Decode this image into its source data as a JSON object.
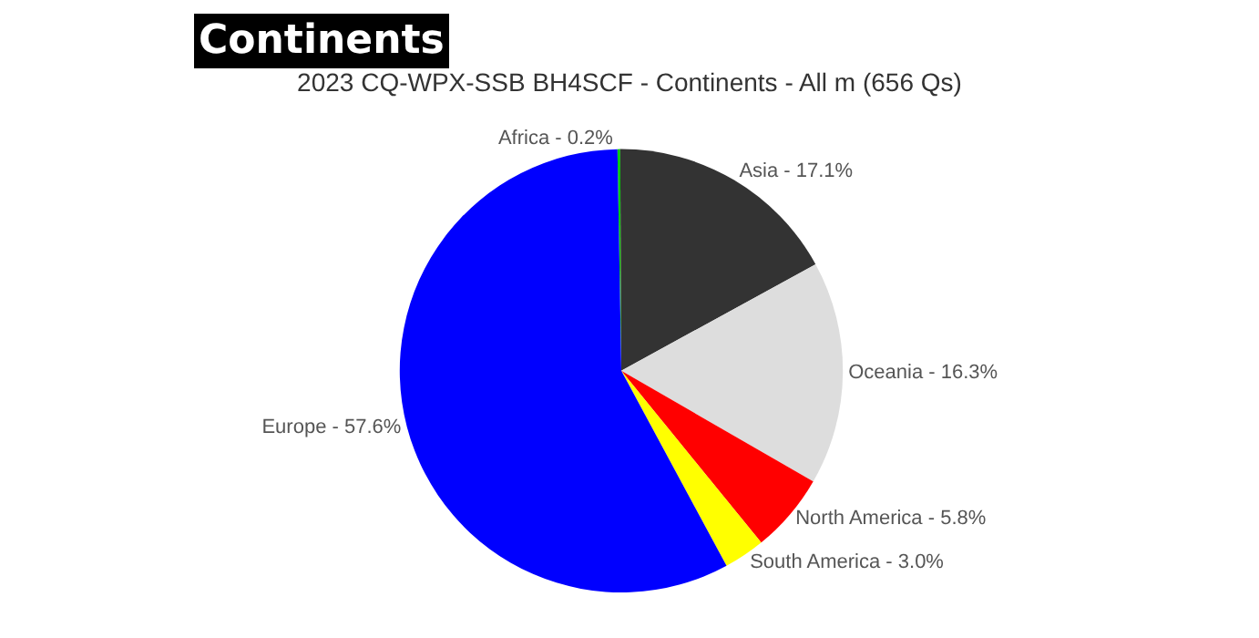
{
  "chart_data": {
    "type": "pie",
    "title": "2023 CQ-WPX-SSB BH4SCF - Continents - All m (656 Qs)",
    "annotations": [
      "Continents"
    ],
    "categories": [
      "Africa",
      "Asia",
      "Oceania",
      "North America",
      "South America",
      "Europe"
    ],
    "values": [
      0.2,
      17.1,
      16.3,
      5.8,
      3.0,
      57.6
    ],
    "value_labels": [
      "0.2%",
      "17.1%",
      "16.3%",
      "5.8%",
      "3.0%",
      "57.6%"
    ],
    "colors": [
      "#00cc00",
      "#333333",
      "#dddddd",
      "#ff0000",
      "#ffff00",
      "#0000ff"
    ],
    "legend": false
  }
}
